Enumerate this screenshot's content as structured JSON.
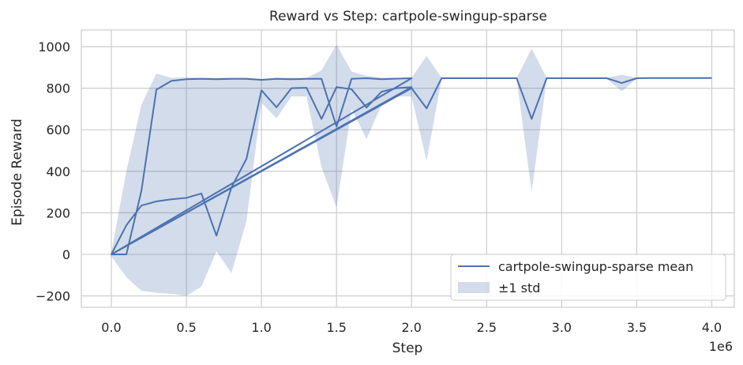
{
  "chart_data": {
    "type": "line",
    "title": "Reward vs Step: cartpole-swingup-sparse",
    "xlabel": "Step",
    "ylabel": "Episode Reward",
    "x_offset_label": "1e6",
    "xlim": [
      -0.2,
      4.15
    ],
    "ylim": [
      -255,
      1080
    ],
    "grid": true,
    "legend_placement": "lower-right",
    "x_ticks": [
      0.0,
      0.5,
      1.0,
      1.5,
      2.0,
      2.5,
      3.0,
      3.5,
      4.0
    ],
    "x_tick_labels": [
      "0.0",
      "0.5",
      "1.0",
      "1.5",
      "2.0",
      "2.5",
      "3.0",
      "3.5",
      "4.0"
    ],
    "y_ticks": [
      -200,
      0,
      200,
      400,
      600,
      800,
      1000
    ],
    "y_tick_labels": [
      "−200",
      "0",
      "200",
      "400",
      "600",
      "800",
      "1000"
    ],
    "colors": {
      "line": "#4c72b0",
      "band": "#4c72b0",
      "grid": "#cccccc",
      "background": "#ffffff",
      "spine": "#cccccc"
    },
    "series": [
      {
        "name": "cartpole-swingup-sparse mean",
        "x": [
          0.0,
          0.1,
          0.2,
          0.3,
          0.4,
          0.5,
          0.6,
          0.7,
          0.8,
          0.9,
          1.0,
          1.1,
          1.2,
          1.3,
          1.4,
          1.5,
          1.6,
          1.7,
          1.8,
          1.9,
          2.0,
          0.0,
          0.1,
          0.2,
          0.3,
          0.4,
          0.5,
          0.6,
          0.7,
          0.8,
          0.9,
          1.0,
          1.1,
          1.2,
          1.3,
          1.4,
          1.5,
          1.6,
          1.7,
          1.8,
          1.9,
          2.0,
          0.0,
          2.0,
          2.1,
          2.2,
          2.3,
          2.4,
          2.5,
          2.6,
          2.7,
          2.8,
          2.9,
          3.0,
          3.1,
          3.2,
          3.3,
          3.4,
          3.5,
          3.6,
          3.7,
          3.8,
          3.9,
          4.0
        ],
        "y": [
          0,
          140,
          235,
          255,
          265,
          272,
          293,
          90,
          322,
          460,
          790,
          708,
          800,
          802,
          652,
          805,
          795,
          707,
          783,
          800,
          805,
          0,
          0,
          305,
          793,
          835,
          843,
          845,
          843,
          845,
          845,
          840,
          845,
          843,
          845,
          845,
          615,
          845,
          848,
          843,
          846,
          848,
          0,
          800,
          703,
          848,
          848,
          848,
          848,
          848,
          848,
          652,
          848,
          848,
          848,
          848,
          848,
          825,
          848,
          849,
          849,
          849,
          849,
          849
        ]
      }
    ],
    "band": {
      "name": "±1 std",
      "x": [
        0.0,
        0.1,
        0.2,
        0.3,
        0.4,
        0.5,
        0.6,
        0.7,
        0.8,
        0.9,
        1.0,
        1.1,
        1.2,
        1.3,
        1.4,
        1.5,
        1.6,
        1.7,
        1.8,
        1.9,
        2.0,
        2.1,
        2.2,
        2.3,
        2.4,
        2.5,
        2.6,
        2.7,
        2.8,
        2.9,
        3.0,
        3.1,
        3.2,
        3.3,
        3.4,
        3.5,
        3.6,
        3.7,
        3.8,
        3.9,
        4.0
      ],
      "upper": [
        10,
        400,
        720,
        870,
        850,
        852,
        850,
        850,
        850,
        850,
        845,
        850,
        850,
        850,
        885,
        1010,
        880,
        860,
        850,
        850,
        850,
        955,
        850,
        850,
        850,
        850,
        850,
        850,
        990,
        850,
        850,
        850,
        850,
        850,
        865,
        850,
        850,
        850,
        850,
        850,
        850
      ],
      "lower": [
        -10,
        -110,
        -175,
        -185,
        -190,
        -200,
        -155,
        15,
        -90,
        160,
        730,
        655,
        760,
        760,
        420,
        225,
        700,
        555,
        720,
        760,
        760,
        450,
        845,
        845,
        845,
        845,
        845,
        845,
        300,
        845,
        845,
        845,
        845,
        845,
        785,
        845,
        845,
        845,
        845,
        845,
        845
      ]
    }
  }
}
